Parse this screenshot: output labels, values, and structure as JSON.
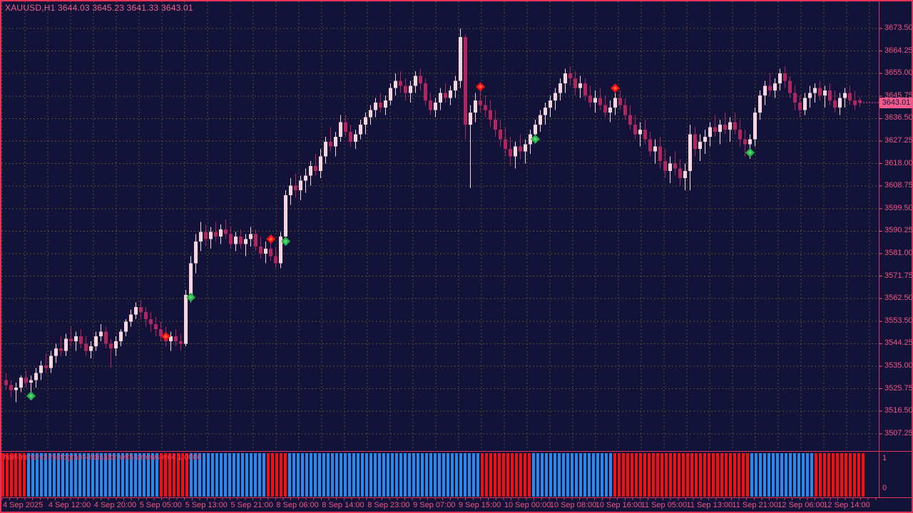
{
  "header": {
    "title_line": "XAUUSD,H1  3644.03 3645.23 3641.33 3643.01",
    "symbol": "XAUUSD",
    "timeframe": "H1",
    "ohlc_display": {
      "open": "3644.03",
      "high": "3645.23",
      "low": "3641.33",
      "close": "3643.01"
    }
  },
  "colors": {
    "background": "#131239",
    "frame": "#e13457",
    "grid": "#55502e",
    "bull_candle": "#f9d5dd",
    "bear_candle": "#b02760",
    "axis_text": "#f05582",
    "badge_bg": "#f25a8c",
    "badge_text": "#131239",
    "histogram_blue": "#2d85e5",
    "histogram_red": "#f01111",
    "signal_buy": "#26b24b",
    "signal_buy_inner": "#54d473",
    "signal_sell": "#f50f0f",
    "signal_sell_inner": "#ff5a3c",
    "indicator_text": "#ff3a50"
  },
  "price_axis": {
    "labels": [
      "3673.50",
      "3664.25",
      "3655.00",
      "3645.75",
      "3636.50",
      "3627.25",
      "3618.00",
      "3608.75",
      "3599.50",
      "3590.25",
      "3581.00",
      "3571.75",
      "3562.50",
      "3553.50",
      "3544.25",
      "3535.00",
      "3525.75",
      "3516.50",
      "3507.25"
    ],
    "top_value": 3673.5,
    "step_value": 9.25,
    "current_price": "3643.01"
  },
  "time_axis": {
    "labels": [
      "4 Sep 2025",
      "4 Sep 12:00",
      "4 Sep 20:00",
      "5 Sep 05:00",
      "5 Sep 13:00",
      "5 Sep 21:00",
      "8 Sep 06:00",
      "8 Sep 14:00",
      "8 Sep 23:00",
      "9 Sep 07:00",
      "9 Sep 15:00",
      "10 Sep 00:00",
      "10 Sep 08:00",
      "10 Sep 16:00",
      "11 Sep 05:00",
      "11 Sep 13:00",
      "11 Sep 21:00",
      "12 Sep 06:00",
      "12 Sep 14:00"
    ]
  },
  "subwindow": {
    "indicator_label": "half-trend-v2-histogram-indicator-with-arrows-mt4 1.0000",
    "scale_max": "1",
    "scale_min": "0"
  },
  "chart_data": {
    "type": "candlestick",
    "title": "XAUUSD,H1",
    "ylabel": "price",
    "y_range": [
      3507.25,
      3673.5
    ],
    "grid": "dashed",
    "legend_position": "none",
    "candles_ohlc": [
      [
        3529,
        3532,
        3525,
        3527
      ],
      [
        3527,
        3529,
        3522,
        3525
      ],
      [
        3525,
        3528,
        3520,
        3526
      ],
      [
        3526,
        3531,
        3524,
        3530
      ],
      [
        3530,
        3533,
        3526,
        3528
      ],
      [
        3528,
        3531,
        3523,
        3529
      ],
      [
        3529,
        3534,
        3526,
        3532
      ],
      [
        3532,
        3537,
        3529,
        3535
      ],
      [
        3535,
        3540,
        3532,
        3534
      ],
      [
        3534,
        3541,
        3532,
        3539
      ],
      [
        3539,
        3544,
        3536,
        3542
      ],
      [
        3542,
        3547,
        3539,
        3541
      ],
      [
        3541,
        3548,
        3539,
        3546
      ],
      [
        3546,
        3551,
        3543,
        3545
      ],
      [
        3545,
        3549,
        3541,
        3547
      ],
      [
        3547,
        3550,
        3542,
        3544
      ],
      [
        3544,
        3547,
        3539,
        3541
      ],
      [
        3541,
        3545,
        3538,
        3543
      ],
      [
        3543,
        3549,
        3541,
        3547
      ],
      [
        3547,
        3552,
        3545,
        3549
      ],
      [
        3549,
        3551,
        3542,
        3544
      ],
      [
        3544,
        3546,
        3534,
        3542
      ],
      [
        3542,
        3547,
        3539,
        3545
      ],
      [
        3545,
        3550,
        3543,
        3549
      ],
      [
        3549,
        3554,
        3547,
        3553
      ],
      [
        3553,
        3558,
        3551,
        3556
      ],
      [
        3556,
        3561,
        3554,
        3559
      ],
      [
        3559,
        3562,
        3554,
        3557
      ],
      [
        3557,
        3559,
        3551,
        3554
      ],
      [
        3554,
        3557,
        3549,
        3552
      ],
      [
        3552,
        3555,
        3547,
        3550
      ],
      [
        3550,
        3553,
        3545,
        3547
      ],
      [
        3547,
        3551,
        3543,
        3545
      ],
      [
        3545,
        3549,
        3541,
        3547
      ],
      [
        3547,
        3550,
        3543,
        3545
      ],
      [
        3545,
        3548,
        3541,
        3544
      ],
      [
        3544,
        3566,
        3543,
        3564
      ],
      [
        3564,
        3580,
        3561,
        3577
      ],
      [
        3577,
        3589,
        3573,
        3586
      ],
      [
        3586,
        3594,
        3582,
        3590
      ],
      [
        3590,
        3593,
        3584,
        3587
      ],
      [
        3587,
        3592,
        3583,
        3590
      ],
      [
        3590,
        3594,
        3586,
        3588
      ],
      [
        3588,
        3593,
        3585,
        3591
      ],
      [
        3591,
        3595,
        3587,
        3589
      ],
      [
        3589,
        3592,
        3583,
        3585
      ],
      [
        3585,
        3590,
        3582,
        3588
      ],
      [
        3588,
        3591,
        3583,
        3585
      ],
      [
        3585,
        3589,
        3580,
        3587
      ],
      [
        3587,
        3592,
        3584,
        3589
      ],
      [
        3589,
        3591,
        3582,
        3584
      ],
      [
        3584,
        3588,
        3579,
        3581
      ],
      [
        3581,
        3586,
        3577,
        3583
      ],
      [
        3583,
        3587,
        3578,
        3580
      ],
      [
        3580,
        3584,
        3575,
        3577
      ],
      [
        3577,
        3590,
        3575,
        3588
      ],
      [
        3588,
        3607,
        3586,
        3605
      ],
      [
        3605,
        3612,
        3601,
        3609
      ],
      [
        3609,
        3614,
        3604,
        3607
      ],
      [
        3607,
        3613,
        3603,
        3611
      ],
      [
        3611,
        3616,
        3606,
        3613
      ],
      [
        3613,
        3619,
        3609,
        3617
      ],
      [
        3617,
        3622,
        3613,
        3615
      ],
      [
        3615,
        3624,
        3612,
        3621
      ],
      [
        3621,
        3629,
        3618,
        3627
      ],
      [
        3627,
        3633,
        3623,
        3625
      ],
      [
        3625,
        3631,
        3621,
        3629
      ],
      [
        3629,
        3638,
        3627,
        3635
      ],
      [
        3635,
        3638,
        3629,
        3631
      ],
      [
        3631,
        3634,
        3625,
        3627
      ],
      [
        3627,
        3632,
        3624,
        3630
      ],
      [
        3630,
        3636,
        3628,
        3634
      ],
      [
        3634,
        3639,
        3630,
        3637
      ],
      [
        3637,
        3642,
        3634,
        3640
      ],
      [
        3640,
        3645,
        3637,
        3643
      ],
      [
        3643,
        3647,
        3639,
        3641
      ],
      [
        3641,
        3646,
        3638,
        3644
      ],
      [
        3644,
        3651,
        3642,
        3649
      ],
      [
        3649,
        3655,
        3646,
        3652
      ],
      [
        3652,
        3656,
        3647,
        3650
      ],
      [
        3650,
        3653,
        3644,
        3647
      ],
      [
        3647,
        3652,
        3643,
        3650
      ],
      [
        3650,
        3656,
        3647,
        3654
      ],
      [
        3654,
        3657,
        3648,
        3651
      ],
      [
        3651,
        3653,
        3642,
        3644
      ],
      [
        3644,
        3647,
        3638,
        3640
      ],
      [
        3640,
        3645,
        3637,
        3643
      ],
      [
        3643,
        3649,
        3640,
        3647
      ],
      [
        3647,
        3651,
        3643,
        3645
      ],
      [
        3645,
        3650,
        3642,
        3648
      ],
      [
        3648,
        3654,
        3645,
        3652
      ],
      [
        3652,
        3673.5,
        3649,
        3670
      ],
      [
        3670,
        3671,
        3628,
        3634
      ],
      [
        3634,
        3642,
        3608,
        3639
      ],
      [
        3639,
        3647,
        3635,
        3644
      ],
      [
        3644,
        3649,
        3639,
        3642
      ],
      [
        3642,
        3646,
        3637,
        3640
      ],
      [
        3640,
        3644,
        3633,
        3636
      ],
      [
        3636,
        3640,
        3629,
        3632
      ],
      [
        3632,
        3636,
        3625,
        3628
      ],
      [
        3628,
        3633,
        3621,
        3624
      ],
      [
        3624,
        3629,
        3617,
        3621
      ],
      [
        3621,
        3627,
        3616,
        3625
      ],
      [
        3625,
        3630,
        3620,
        3623
      ],
      [
        3623,
        3628,
        3618,
        3626
      ],
      [
        3626,
        3632,
        3622,
        3630
      ],
      [
        3630,
        3636,
        3627,
        3634
      ],
      [
        3634,
        3640,
        3631,
        3638
      ],
      [
        3638,
        3643,
        3634,
        3641
      ],
      [
        3641,
        3646,
        3637,
        3644
      ],
      [
        3644,
        3649,
        3640,
        3647
      ],
      [
        3647,
        3653,
        3644,
        3651
      ],
      [
        3651,
        3657,
        3647,
        3655
      ],
      [
        3655,
        3658,
        3650,
        3653
      ],
      [
        3653,
        3656,
        3646,
        3649
      ],
      [
        3649,
        3654,
        3645,
        3651
      ],
      [
        3651,
        3653,
        3644,
        3646
      ],
      [
        3646,
        3650,
        3641,
        3643
      ],
      [
        3643,
        3648,
        3639,
        3645
      ],
      [
        3645,
        3649,
        3640,
        3642
      ],
      [
        3642,
        3646,
        3637,
        3639
      ],
      [
        3639,
        3644,
        3635,
        3641
      ],
      [
        3641,
        3647,
        3638,
        3645
      ],
      [
        3645,
        3648,
        3640,
        3642
      ],
      [
        3642,
        3645,
        3636,
        3638
      ],
      [
        3638,
        3642,
        3632,
        3634
      ],
      [
        3634,
        3638,
        3628,
        3630
      ],
      [
        3630,
        3635,
        3625,
        3632
      ],
      [
        3632,
        3636,
        3626,
        3628
      ],
      [
        3628,
        3631,
        3621,
        3623
      ],
      [
        3623,
        3628,
        3618,
        3625
      ],
      [
        3625,
        3629,
        3616,
        3619
      ],
      [
        3619,
        3624,
        3612,
        3615
      ],
      [
        3615,
        3621,
        3610,
        3618
      ],
      [
        3618,
        3623,
        3613,
        3616
      ],
      [
        3616,
        3620,
        3609,
        3612
      ],
      [
        3612,
        3618,
        3607,
        3615
      ],
      [
        3615,
        3634,
        3607,
        3630
      ],
      [
        3630,
        3633,
        3621,
        3624
      ],
      [
        3624,
        3630,
        3619,
        3627
      ],
      [
        3627,
        3632,
        3622,
        3629
      ],
      [
        3629,
        3635,
        3625,
        3633
      ],
      [
        3633,
        3638,
        3629,
        3631
      ],
      [
        3631,
        3636,
        3626,
        3634
      ],
      [
        3634,
        3639,
        3630,
        3632
      ],
      [
        3632,
        3637,
        3627,
        3635
      ],
      [
        3635,
        3639,
        3630,
        3632
      ],
      [
        3632,
        3636,
        3625,
        3628
      ],
      [
        3628,
        3632,
        3621,
        3626
      ],
      [
        3626,
        3630,
        3620,
        3628
      ],
      [
        3628,
        3641,
        3625,
        3639
      ],
      [
        3639,
        3648,
        3636,
        3646
      ],
      [
        3646,
        3652,
        3642,
        3650
      ],
      [
        3650,
        3655,
        3646,
        3648
      ],
      [
        3648,
        3653,
        3645,
        3651
      ],
      [
        3651,
        3657,
        3648,
        3655
      ],
      [
        3655,
        3658,
        3649,
        3652
      ],
      [
        3652,
        3654,
        3645,
        3647
      ],
      [
        3647,
        3650,
        3640,
        3643
      ],
      [
        3643,
        3646,
        3637,
        3640
      ],
      [
        3640,
        3647,
        3638,
        3645
      ],
      [
        3645,
        3650,
        3641,
        3647
      ],
      [
        3647,
        3651,
        3643,
        3649
      ],
      [
        3649,
        3652,
        3644,
        3646
      ],
      [
        3646,
        3650,
        3641,
        3648
      ],
      [
        3648,
        3651,
        3642,
        3644
      ],
      [
        3644,
        3648,
        3639,
        3641
      ],
      [
        3641,
        3647,
        3638,
        3645
      ],
      [
        3645,
        3649,
        3641,
        3647
      ],
      [
        3647,
        3650,
        3642,
        3644
      ],
      [
        3644,
        3648,
        3640,
        3642
      ],
      [
        3644.03,
        3645.23,
        3641.33,
        3643.01
      ]
    ],
    "signals": [
      {
        "bar": 5,
        "type": "buy",
        "price": 3522.5
      },
      {
        "bar": 32,
        "type": "sell",
        "price": 3547
      },
      {
        "bar": 37,
        "type": "buy",
        "price": 3563
      },
      {
        "bar": 53,
        "type": "sell",
        "price": 3587
      },
      {
        "bar": 56,
        "type": "buy",
        "price": 3586
      },
      {
        "bar": 95,
        "type": "sell",
        "price": 3649.5
      },
      {
        "bar": 106,
        "type": "buy",
        "price": 3628
      },
      {
        "bar": 122,
        "type": "sell",
        "price": 3649
      },
      {
        "bar": 149,
        "type": "buy",
        "price": 3622.5
      }
    ],
    "histogram": {
      "name": "half-trend-v2-histogram-indicator-with-arrows-mt4",
      "value_range": [
        0,
        1
      ],
      "bar_value": 1,
      "segments": [
        {
          "color": "red",
          "count": 6
        },
        {
          "color": "blue",
          "count": 31
        },
        {
          "color": "red",
          "count": 7
        },
        {
          "color": "blue",
          "count": 18
        },
        {
          "color": "red",
          "count": 5
        },
        {
          "color": "blue",
          "count": 45
        },
        {
          "color": "red",
          "count": 12
        },
        {
          "color": "blue",
          "count": 19
        },
        {
          "color": "red",
          "count": 32
        },
        {
          "color": "blue",
          "count": 15
        },
        {
          "color": "red",
          "count": 12
        }
      ]
    }
  }
}
